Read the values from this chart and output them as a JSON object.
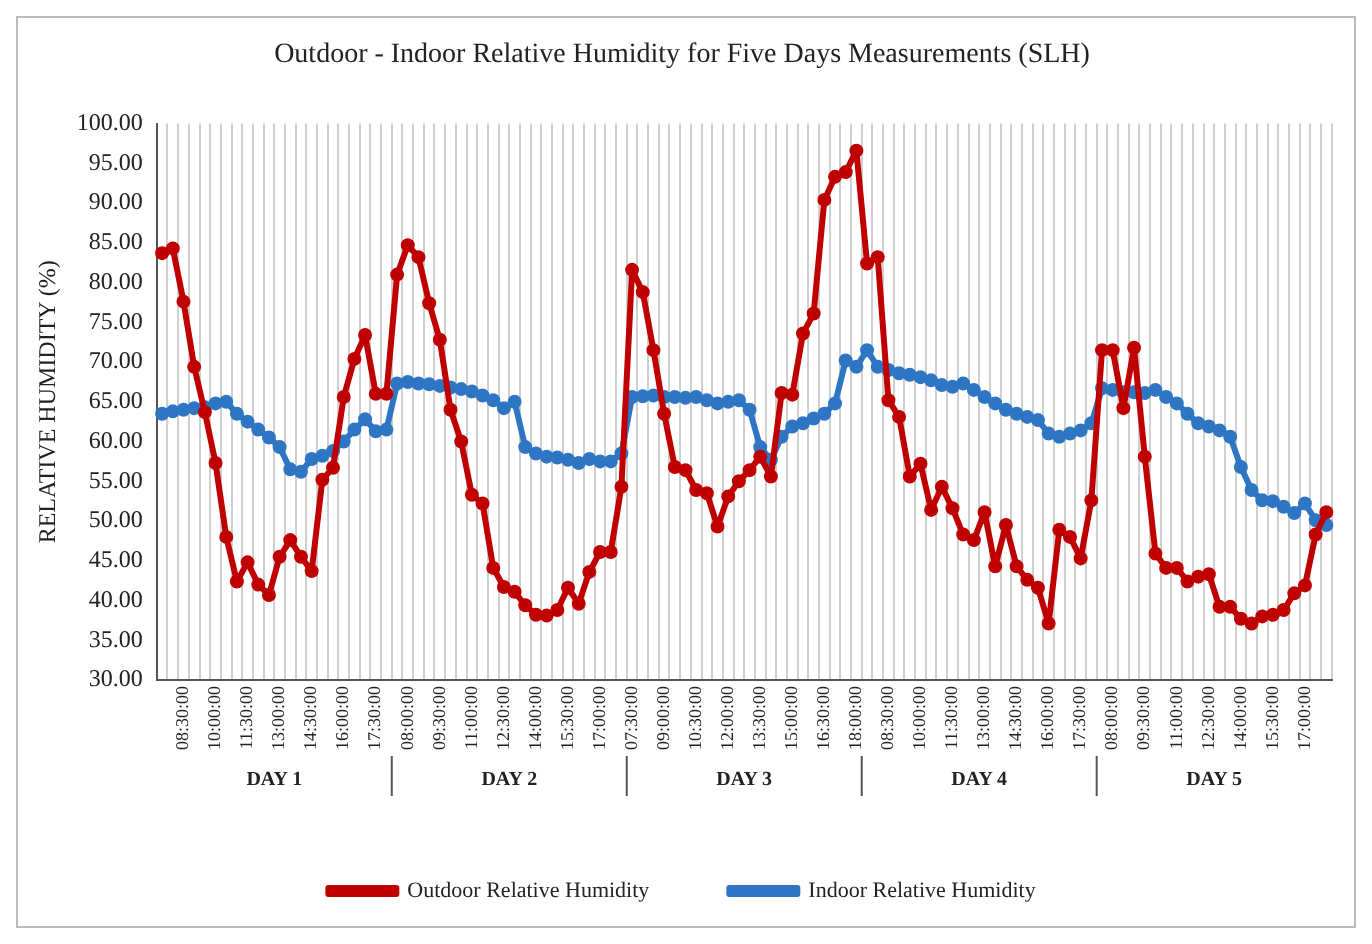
{
  "chart_data": {
    "type": "line",
    "title": "Outdoor - Indoor Relative Humidity for Five Days Measurements (SLH)",
    "ylabel": "RELATIVE HUMIDITY (%)",
    "categories": [
      null,
      null,
      "08:30:00",
      null,
      null,
      "10:00:00",
      null,
      null,
      "11:30:00",
      null,
      null,
      "13:00:00",
      null,
      null,
      "14:30:00",
      null,
      null,
      "16:00:00",
      null,
      null,
      "17:30:00",
      null,
      null,
      "08:00:00",
      null,
      null,
      "09:30:00",
      null,
      null,
      "11:00:00",
      null,
      null,
      "12:30:00",
      null,
      null,
      "14:00:00",
      null,
      null,
      "15:30:00",
      null,
      null,
      "17:00:00",
      null,
      null,
      "07:30:00",
      null,
      null,
      "09:00:00",
      null,
      null,
      "10:30:00",
      null,
      null,
      "12:00:00",
      null,
      null,
      "13:30:00",
      null,
      null,
      "15:00:00",
      null,
      null,
      "16:30:00",
      null,
      null,
      "18:00:00",
      null,
      null,
      "08:30:00",
      null,
      null,
      "10:00:00",
      null,
      null,
      "11:30:00",
      null,
      null,
      "13:00:00",
      null,
      null,
      "14:30:00",
      null,
      null,
      "16:00:00",
      null,
      null,
      "17:30:00",
      null,
      null,
      "08:00:00",
      null,
      null,
      "09:30:00",
      null,
      null,
      "11:00:00",
      null,
      null,
      "12:30:00",
      null,
      null,
      "14:00:00",
      null,
      null,
      "15:30:00",
      null,
      null,
      "17:00:00",
      null,
      null
    ],
    "series": [
      {
        "name": "Outdoor Relative Humidity",
        "color": "#c00000",
        "values": [
          83.7,
          84.3,
          77.6,
          69.4,
          63.7,
          57.3,
          48.0,
          42.4,
          44.8,
          42.0,
          40.7,
          45.5,
          47.6,
          45.5,
          43.7,
          55.2,
          56.7,
          65.6,
          70.4,
          73.4,
          66,
          66,
          81,
          84.7,
          83.2,
          77.4,
          72.8,
          64.0,
          60.0,
          53.3,
          52.2,
          44.1,
          41.7,
          41.1,
          39.4,
          38.2,
          38.1,
          38.8,
          41.6,
          39.6,
          43.6,
          46.1,
          46.1,
          54.3,
          81.6,
          78.8,
          71.5,
          63.5,
          56.8,
          56.4,
          53.9,
          53.5,
          49.3,
          53.1,
          55.0,
          56.4,
          58.1,
          55.6,
          66.1,
          65.9,
          73.6,
          76.1,
          90.4,
          93.3,
          93.9,
          96.6,
          82.4,
          83.2,
          65.2,
          63.1,
          55.6,
          57.2,
          51.4,
          54.3,
          51.6,
          48.3,
          47.6,
          51.1,
          44.3,
          49.5,
          44.3,
          42.6,
          41.6,
          37.1,
          48.9,
          48.0,
          45.3,
          52.6,
          71.5,
          71.5,
          64.2,
          71.8,
          58.1,
          45.9,
          44.1,
          44.1,
          42.4,
          43.0,
          43.3,
          39.2,
          39.2,
          37.7,
          37.1,
          38.0,
          38.2,
          38.8,
          40.9,
          41.9,
          48.3,
          51.1
        ]
      },
      {
        "name": "Indoor Relative Humidity",
        "color": "#2e75c4",
        "values": [
          63.5,
          63.8,
          64.0,
          64.2,
          64.3,
          64.8,
          65.0,
          63.5,
          62.5,
          61.5,
          60.5,
          59.3,
          56.5,
          56.2,
          57.8,
          58.2,
          58.8,
          60.0,
          61.5,
          62.8,
          61.3,
          61.5,
          67.3,
          67.5,
          67.3,
          67.2,
          67.0,
          66.8,
          66.6,
          66.3,
          65.8,
          65.2,
          64.2,
          65.0,
          59.3,
          58.5,
          58.1,
          58.0,
          57.7,
          57.3,
          57.8,
          57.5,
          57.5,
          58.5,
          65.6,
          65.7,
          65.8,
          65.6,
          65.6,
          65.5,
          65.6,
          65.2,
          64.8,
          65.0,
          65.2,
          64.0,
          59.3,
          57.7,
          60.6,
          61.9,
          62.3,
          62.9,
          63.5,
          64.8,
          70.2,
          69.4,
          71.5,
          69.4,
          69.0,
          68.6,
          68.4,
          68.1,
          67.7,
          67.1,
          66.9,
          67.3,
          66.5,
          65.6,
          64.8,
          64.0,
          63.5,
          63.1,
          62.7,
          61.0,
          60.6,
          61.0,
          61.4,
          62.3,
          66.7,
          66.5,
          66.2,
          66.2,
          66.1,
          66.5,
          65.6,
          64.8,
          63.5,
          62.3,
          61.9,
          61.4,
          60.6,
          56.8,
          53.9,
          52.6,
          52.5,
          51.8,
          51.0,
          52.2,
          50.1,
          49.5
        ]
      }
    ],
    "ylim": [
      30,
      100
    ],
    "yticks": [
      {
        "value": 30,
        "label": "30.00"
      },
      {
        "value": 35,
        "label": "35.00"
      },
      {
        "value": 40,
        "label": "40.00"
      },
      {
        "value": 45,
        "label": "45.00"
      },
      {
        "value": 50,
        "label": "50.00"
      },
      {
        "value": 55,
        "label": "55.00"
      },
      {
        "value": 60,
        "label": "60.00"
      },
      {
        "value": 65,
        "label": "65.00"
      },
      {
        "value": 70,
        "label": "70.00"
      },
      {
        "value": 75,
        "label": "75.00"
      },
      {
        "value": 80,
        "label": "80.00"
      },
      {
        "value": 85,
        "label": "85.00"
      },
      {
        "value": 90,
        "label": "90.00"
      },
      {
        "value": 95,
        "label": "95.00"
      },
      {
        "value": 100,
        "label": "100.00"
      }
    ],
    "annotations": [
      "DAY 1",
      "DAY 2",
      "DAY 3",
      "DAY 4",
      "DAY 5"
    ],
    "grid": "x",
    "legend": "bottom",
    "marker": "circle",
    "line_style": "solid"
  }
}
